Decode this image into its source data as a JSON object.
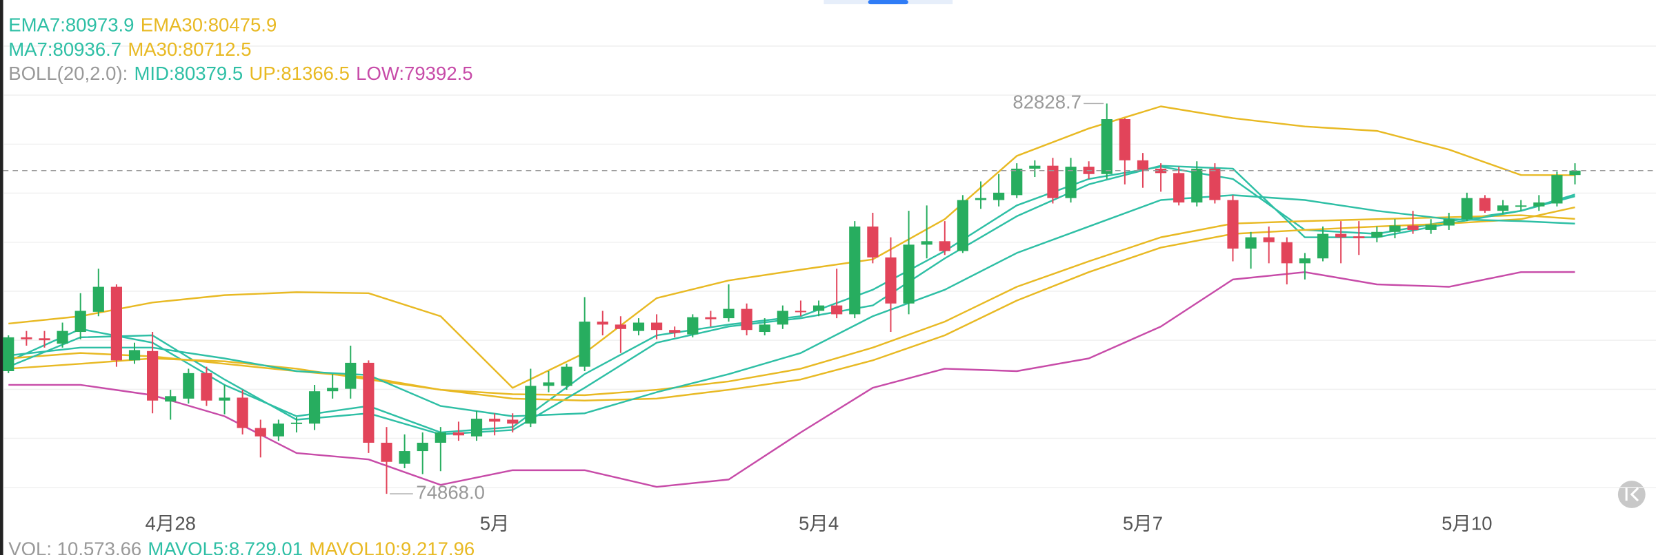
{
  "chart_data": {
    "type": "candlestick",
    "up_color": "#27ad5f",
    "down_color": "#e2445a",
    "xlim": [
      -0.47,
      91.5
    ],
    "ylim": [
      74512.5,
      84940
    ],
    "yticks": [
      75000,
      76000,
      77000,
      78000,
      79000,
      80000,
      81000,
      82000,
      83000,
      84000
    ],
    "grid": true,
    "xticks": [
      {
        "value": 9,
        "label": "4月28"
      },
      {
        "value": 27,
        "label": "5月"
      },
      {
        "value": 45,
        "label": "5月4"
      },
      {
        "value": 63,
        "label": "5月7"
      },
      {
        "value": 81,
        "label": "5月10"
      }
    ],
    "candles": [
      {
        "o": 77370,
        "h": 78100,
        "l": 77330,
        "c": 78060
      },
      {
        "o": 78060,
        "h": 78190,
        "l": 77890,
        "c": 78020
      },
      {
        "o": 78040,
        "h": 78190,
        "l": 77850,
        "c": 78000
      },
      {
        "o": 77930,
        "h": 78360,
        "l": 77850,
        "c": 78190
      },
      {
        "o": 78170,
        "h": 78960,
        "l": 78020,
        "c": 78600
      },
      {
        "o": 78580,
        "h": 79460,
        "l": 78490,
        "c": 79090
      },
      {
        "o": 79090,
        "h": 79140,
        "l": 77460,
        "c": 77590
      },
      {
        "o": 77590,
        "h": 77950,
        "l": 77520,
        "c": 77800
      },
      {
        "o": 77780,
        "h": 78170,
        "l": 76510,
        "c": 76770
      },
      {
        "o": 76750,
        "h": 76990,
        "l": 76380,
        "c": 76860
      },
      {
        "o": 76810,
        "h": 77420,
        "l": 76710,
        "c": 77330
      },
      {
        "o": 77330,
        "h": 77460,
        "l": 76660,
        "c": 76770
      },
      {
        "o": 76770,
        "h": 77090,
        "l": 76490,
        "c": 76830
      },
      {
        "o": 76830,
        "h": 76990,
        "l": 76080,
        "c": 76210
      },
      {
        "o": 76210,
        "h": 76380,
        "l": 75610,
        "c": 76040
      },
      {
        "o": 76040,
        "h": 76380,
        "l": 75950,
        "c": 76300
      },
      {
        "o": 76300,
        "h": 76430,
        "l": 76120,
        "c": 76320
      },
      {
        "o": 76300,
        "h": 77090,
        "l": 76170,
        "c": 76960
      },
      {
        "o": 76960,
        "h": 77310,
        "l": 76810,
        "c": 77030
      },
      {
        "o": 77010,
        "h": 77890,
        "l": 76810,
        "c": 77540
      },
      {
        "o": 77540,
        "h": 77590,
        "l": 75700,
        "c": 75910
      },
      {
        "o": 75910,
        "h": 76230,
        "l": 74868,
        "c": 75520
      },
      {
        "o": 75480,
        "h": 76080,
        "l": 75390,
        "c": 75740
      },
      {
        "o": 75740,
        "h": 76120,
        "l": 75270,
        "c": 75910
      },
      {
        "o": 75910,
        "h": 76230,
        "l": 75330,
        "c": 76120
      },
      {
        "o": 76120,
        "h": 76340,
        "l": 75950,
        "c": 76060
      },
      {
        "o": 76040,
        "h": 76560,
        "l": 75950,
        "c": 76400
      },
      {
        "o": 76400,
        "h": 76510,
        "l": 76060,
        "c": 76340
      },
      {
        "o": 76380,
        "h": 76510,
        "l": 76120,
        "c": 76300
      },
      {
        "o": 76300,
        "h": 77420,
        "l": 76230,
        "c": 77070
      },
      {
        "o": 77070,
        "h": 77370,
        "l": 76940,
        "c": 77140
      },
      {
        "o": 77070,
        "h": 77520,
        "l": 76990,
        "c": 77460
      },
      {
        "o": 77460,
        "h": 78880,
        "l": 77370,
        "c": 78380
      },
      {
        "o": 78380,
        "h": 78600,
        "l": 78100,
        "c": 78320
      },
      {
        "o": 78320,
        "h": 78490,
        "l": 77740,
        "c": 78230
      },
      {
        "o": 78190,
        "h": 78450,
        "l": 78100,
        "c": 78360
      },
      {
        "o": 78360,
        "h": 78530,
        "l": 78020,
        "c": 78210
      },
      {
        "o": 78210,
        "h": 78280,
        "l": 78060,
        "c": 78150
      },
      {
        "o": 78120,
        "h": 78530,
        "l": 78060,
        "c": 78470
      },
      {
        "o": 78470,
        "h": 78600,
        "l": 78280,
        "c": 78430
      },
      {
        "o": 78450,
        "h": 79140,
        "l": 78380,
        "c": 78640
      },
      {
        "o": 78640,
        "h": 78750,
        "l": 78100,
        "c": 78210
      },
      {
        "o": 78170,
        "h": 78450,
        "l": 78100,
        "c": 78320
      },
      {
        "o": 78320,
        "h": 78710,
        "l": 78230,
        "c": 78600
      },
      {
        "o": 78600,
        "h": 78810,
        "l": 78490,
        "c": 78580
      },
      {
        "o": 78600,
        "h": 78810,
        "l": 78490,
        "c": 78710
      },
      {
        "o": 78710,
        "h": 79460,
        "l": 78450,
        "c": 78530
      },
      {
        "o": 78530,
        "h": 80430,
        "l": 78450,
        "c": 80320
      },
      {
        "o": 80320,
        "h": 80600,
        "l": 79570,
        "c": 79690
      },
      {
        "o": 79690,
        "h": 80100,
        "l": 78170,
        "c": 78750
      },
      {
        "o": 78750,
        "h": 80640,
        "l": 78530,
        "c": 79950
      },
      {
        "o": 79950,
        "h": 80750,
        "l": 79670,
        "c": 80020
      },
      {
        "o": 80020,
        "h": 80430,
        "l": 79740,
        "c": 79820
      },
      {
        "o": 79820,
        "h": 80960,
        "l": 79780,
        "c": 80860
      },
      {
        "o": 80860,
        "h": 81240,
        "l": 80680,
        "c": 80900
      },
      {
        "o": 80860,
        "h": 81390,
        "l": 80730,
        "c": 81010
      },
      {
        "o": 80960,
        "h": 81610,
        "l": 80900,
        "c": 81500
      },
      {
        "o": 81500,
        "h": 81670,
        "l": 81330,
        "c": 81560
      },
      {
        "o": 81560,
        "h": 81720,
        "l": 80790,
        "c": 80900
      },
      {
        "o": 80900,
        "h": 81720,
        "l": 80810,
        "c": 81540
      },
      {
        "o": 81540,
        "h": 81650,
        "l": 81290,
        "c": 81390
      },
      {
        "o": 81390,
        "h": 82828.7,
        "l": 81290,
        "c": 82510
      },
      {
        "o": 82510,
        "h": 82530,
        "l": 81180,
        "c": 81670
      },
      {
        "o": 81670,
        "h": 81820,
        "l": 81110,
        "c": 81480
      },
      {
        "o": 81500,
        "h": 81610,
        "l": 81030,
        "c": 81410
      },
      {
        "o": 81410,
        "h": 81540,
        "l": 80750,
        "c": 80810
      },
      {
        "o": 80810,
        "h": 81650,
        "l": 80730,
        "c": 81500
      },
      {
        "o": 81500,
        "h": 81610,
        "l": 80790,
        "c": 80860
      },
      {
        "o": 80860,
        "h": 80960,
        "l": 79610,
        "c": 79870
      },
      {
        "o": 79870,
        "h": 80210,
        "l": 79460,
        "c": 80100
      },
      {
        "o": 80100,
        "h": 80320,
        "l": 79570,
        "c": 80000
      },
      {
        "o": 80000,
        "h": 80100,
        "l": 79140,
        "c": 79570
      },
      {
        "o": 79570,
        "h": 79780,
        "l": 79240,
        "c": 79670
      },
      {
        "o": 79670,
        "h": 80320,
        "l": 79610,
        "c": 80170
      },
      {
        "o": 80170,
        "h": 80430,
        "l": 79570,
        "c": 80100
      },
      {
        "o": 80120,
        "h": 80430,
        "l": 79740,
        "c": 80080
      },
      {
        "o": 80100,
        "h": 80320,
        "l": 80000,
        "c": 80210
      },
      {
        "o": 80210,
        "h": 80470,
        "l": 80080,
        "c": 80340
      },
      {
        "o": 80340,
        "h": 80640,
        "l": 80170,
        "c": 80250
      },
      {
        "o": 80250,
        "h": 80470,
        "l": 80170,
        "c": 80360
      },
      {
        "o": 80340,
        "h": 80600,
        "l": 80250,
        "c": 80470
      },
      {
        "o": 80470,
        "h": 81010,
        "l": 80430,
        "c": 80900
      },
      {
        "o": 80900,
        "h": 80960,
        "l": 80600,
        "c": 80640
      },
      {
        "o": 80640,
        "h": 80860,
        "l": 80580,
        "c": 80750
      },
      {
        "o": 80730,
        "h": 80860,
        "l": 80640,
        "c": 80750
      },
      {
        "o": 80730,
        "h": 80960,
        "l": 80640,
        "c": 80810
      },
      {
        "o": 80790,
        "h": 81440,
        "l": 80730,
        "c": 81370
      },
      {
        "o": 81370,
        "h": 81610,
        "l": 81180,
        "c": 81460
      }
    ],
    "extreme_labels": {
      "high": "82828.7",
      "low": "74868.0"
    },
    "boll_label": "BOLL(20,2.0):",
    "indicators": {
      "x": [
        0,
        4,
        8,
        12,
        16,
        20,
        24,
        28,
        32,
        36,
        40,
        44,
        48,
        52,
        56,
        60,
        64,
        68,
        72,
        76,
        80,
        84,
        87
      ],
      "series": [
        {
          "name": "EMA7:80973.9",
          "color": "#2ebfa5",
          "values": [
            77570,
            78230,
            77950,
            77090,
            76450,
            76660,
            76120,
            76230,
            77310,
            78100,
            78320,
            78490,
            79030,
            79820,
            80750,
            81290,
            81540,
            81290,
            80250,
            80170,
            80430,
            80640,
            80973.9
          ]
        },
        {
          "name": "EMA30:80475.9",
          "color": "#e8b923",
          "values": [
            77630,
            77740,
            77670,
            77520,
            77370,
            77240,
            76990,
            76900,
            76880,
            76990,
            77160,
            77420,
            77850,
            78380,
            79090,
            79610,
            80100,
            80380,
            80430,
            80470,
            80510,
            80550,
            80475.9
          ]
        },
        {
          "name": "MA7:80936.7",
          "color": "#2ebfa5",
          "values": [
            77460,
            78060,
            78100,
            77200,
            76380,
            76510,
            76080,
            76170,
            77030,
            77950,
            78280,
            78450,
            78710,
            79670,
            80530,
            81180,
            81560,
            81500,
            80100,
            80100,
            80380,
            80640,
            80936.7
          ]
        },
        {
          "name": "MA30:80712.5",
          "color": "#e8b923",
          "values": [
            77420,
            77520,
            77630,
            77570,
            77420,
            77200,
            76990,
            76810,
            76770,
            76810,
            76990,
            77200,
            77590,
            78100,
            78810,
            79390,
            79890,
            80170,
            80250,
            80320,
            80380,
            80470,
            80712.5
          ]
        },
        {
          "name": "MID:80379.5",
          "color": "#2ebfa5",
          "values": [
            77690,
            77850,
            77850,
            77630,
            77370,
            77290,
            76660,
            76450,
            76510,
            76940,
            77310,
            77740,
            78490,
            79030,
            79780,
            80320,
            80860,
            80960,
            80860,
            80640,
            80470,
            80430,
            80379.5
          ]
        },
        {
          "name": "UP:81366.5",
          "color": "#e8b923",
          "values": [
            78340,
            78490,
            78770,
            78920,
            78980,
            78960,
            78490,
            77030,
            77740,
            78860,
            79220,
            79440,
            79650,
            80470,
            81760,
            82320,
            82770,
            82530,
            82360,
            82270,
            81890,
            81370,
            81366.5
          ]
        },
        {
          "name": "LOW:79392.5",
          "color": "#c74ba8",
          "values": [
            77090,
            77090,
            76880,
            76450,
            75700,
            75570,
            75050,
            75350,
            75350,
            75010,
            75160,
            76120,
            77030,
            77420,
            77370,
            77630,
            78280,
            79240,
            79390,
            79140,
            79090,
            79390,
            79392.5
          ]
        }
      ]
    },
    "volume_labels": [
      {
        "text": "VOL: 10,573.66",
        "color": "#999999"
      },
      {
        "text": "MAVOL5:8,729.01",
        "color": "#2ebfa5"
      },
      {
        "text": "MAVOL10:9,217.96",
        "color": "#e8b923"
      }
    ]
  }
}
